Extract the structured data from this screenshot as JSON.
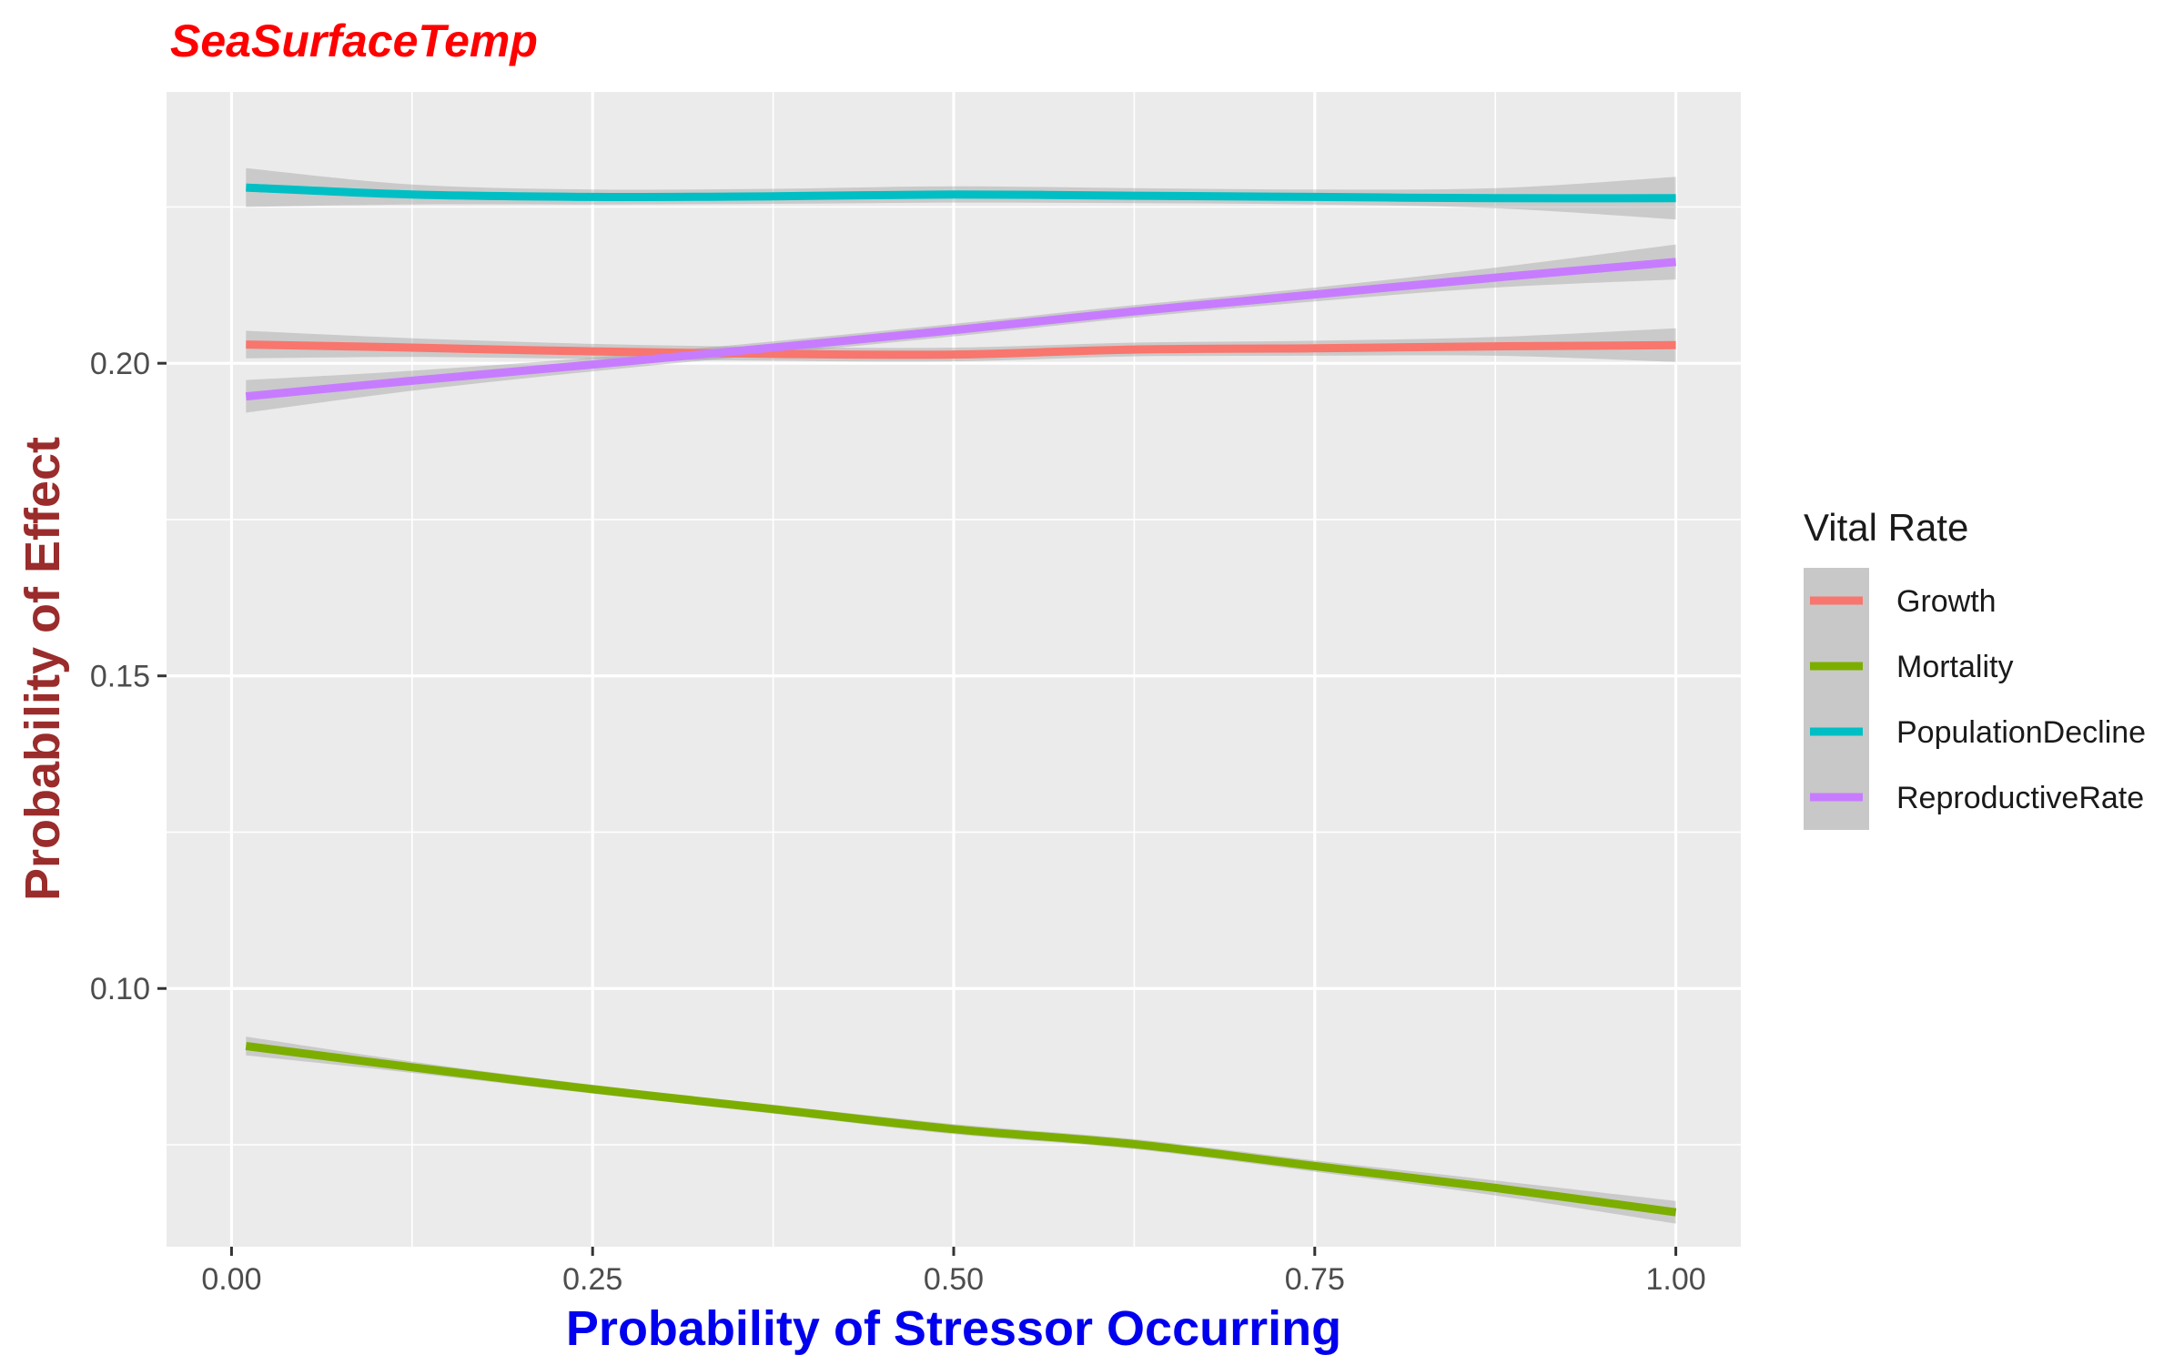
{
  "chart_data": {
    "type": "line",
    "title": "SeaSurfaceTemp",
    "xlabel": "Probability of Stressor Occurring",
    "ylabel": "Probability of Effect",
    "xlim": [
      -0.045,
      1.045
    ],
    "ylim": [
      0.0587,
      0.2434
    ],
    "x_ticks": [
      0.0,
      0.25,
      0.5,
      0.75,
      1.0
    ],
    "x_tick_labels": [
      "0.00",
      "0.25",
      "0.50",
      "0.75",
      "1.00"
    ],
    "y_ticks": [
      0.1,
      0.15,
      0.2
    ],
    "y_tick_labels": [
      "0.10",
      "0.15",
      "0.20"
    ],
    "grid": true,
    "confidence_band": true,
    "legend": {
      "title": "Vital Rate",
      "position": "right"
    },
    "series": [
      {
        "name": "Growth",
        "color": "#F8766D",
        "x": [
          0.01,
          0.125,
          0.25,
          0.375,
          0.5,
          0.625,
          0.75,
          0.875,
          1.0
        ],
        "y": [
          0.203,
          0.2025,
          0.2019,
          0.2015,
          0.2014,
          0.2022,
          0.2024,
          0.2027,
          0.2029
        ],
        "band": [
          0.0022,
          0.0015,
          0.0012,
          0.0011,
          0.0011,
          0.0011,
          0.0012,
          0.0015,
          0.0027
        ]
      },
      {
        "name": "Mortality",
        "color": "#7CAE00",
        "x": [
          0.01,
          0.125,
          0.25,
          0.375,
          0.5,
          0.625,
          0.75,
          0.875,
          1.0
        ],
        "y": [
          0.0908,
          0.0874,
          0.0839,
          0.0807,
          0.0775,
          0.0751,
          0.0716,
          0.0681,
          0.0642
        ],
        "band": [
          0.0015,
          0.0009,
          0.0007,
          0.0007,
          0.0008,
          0.0008,
          0.0009,
          0.0012,
          0.0018
        ]
      },
      {
        "name": "PopulationDecline",
        "color": "#00BFC4",
        "x": [
          0.01,
          0.125,
          0.25,
          0.375,
          0.5,
          0.625,
          0.75,
          0.875,
          1.0
        ],
        "y": [
          0.2281,
          0.227,
          0.2266,
          0.2267,
          0.227,
          0.2268,
          0.2266,
          0.2264,
          0.2264
        ],
        "band": [
          0.0031,
          0.0016,
          0.0012,
          0.0012,
          0.0013,
          0.0012,
          0.0012,
          0.0016,
          0.0034
        ]
      },
      {
        "name": "ReproductiveRate",
        "color": "#C77CFF",
        "x": [
          0.01,
          0.125,
          0.25,
          0.375,
          0.5,
          0.625,
          0.75,
          0.875,
          1.0
        ],
        "y": [
          0.1947,
          0.1972,
          0.1998,
          0.2025,
          0.2053,
          0.2083,
          0.211,
          0.2137,
          0.2162
        ],
        "band": [
          0.0026,
          0.0016,
          0.0011,
          0.001,
          0.001,
          0.001,
          0.0011,
          0.0016,
          0.0028
        ]
      }
    ]
  },
  "colors": {
    "title": "#FF0000",
    "xlabel": "#0000EE",
    "ylabel": "#9A2C2C",
    "panel_background": "#EBEBEB",
    "grid_major": "#FFFFFF",
    "band_fill": "#999999"
  }
}
